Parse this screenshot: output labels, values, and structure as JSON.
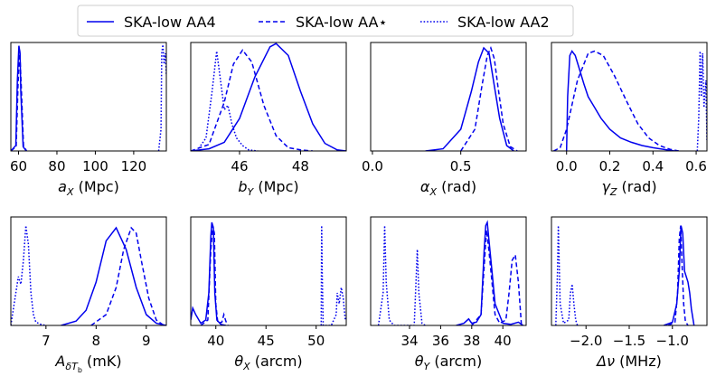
{
  "legend": {
    "items": [
      {
        "label": "SKA-low AA4",
        "dash": "solid"
      },
      {
        "label": "SKA-low AA⋆",
        "dash": "dashed"
      },
      {
        "label": "SKA-low AA2",
        "dash": "dotted"
      }
    ],
    "placement": "top-center"
  },
  "line_color": "#0000ee",
  "chart_data": [
    {
      "type": "line",
      "xlabel_main": "a",
      "xlabel_sub": "X",
      "xlabel_unit": " (Mpc)",
      "xlim": [
        56,
        137
      ],
      "xticks": [
        60,
        80,
        100,
        120
      ],
      "ylim": [
        0,
        1
      ],
      "series": [
        {
          "name": "SKA-low AA4",
          "dash": "solid",
          "x": [
            56,
            58.6,
            59.4,
            60.2,
            60.8,
            61.2,
            62.4,
            64
          ],
          "y": [
            0,
            0.05,
            0.65,
            0.97,
            0.9,
            0.55,
            0.04,
            0
          ]
        },
        {
          "name": "SKA-low AA⋆",
          "dash": "dashed",
          "x": [
            56,
            58.8,
            59.7,
            60.6,
            61.4,
            62.6,
            64.2
          ],
          "y": [
            0,
            0.04,
            0.6,
            0.93,
            0.6,
            0.05,
            0
          ]
        },
        {
          "name": "SKA-low AA2",
          "dash": "dotted",
          "x": [
            133,
            134.2,
            134.6,
            135.2,
            135.8,
            136.5,
            137
          ],
          "y": [
            0,
            0.2,
            0.9,
            0.98,
            0.8,
            0.9,
            0.7
          ]
        }
      ]
    },
    {
      "type": "line",
      "xlabel_main": "b",
      "xlabel_sub": "Y",
      "xlabel_unit": " (Mpc)",
      "xlim": [
        44.4,
        49.5
      ],
      "xticks": [
        46,
        48
      ],
      "ylim": [
        0,
        1
      ],
      "series": [
        {
          "name": "SKA-low AA4",
          "dash": "solid",
          "x": [
            44.4,
            45,
            45.5,
            46,
            46.5,
            47,
            47.2,
            47.6,
            48,
            48.4,
            48.8,
            49.2,
            49.5
          ],
          "y": [
            0,
            0.02,
            0.08,
            0.3,
            0.68,
            0.96,
            0.99,
            0.88,
            0.55,
            0.25,
            0.07,
            0.01,
            0
          ]
        },
        {
          "name": "SKA-low AA⋆",
          "dash": "dashed",
          "x": [
            44.4,
            45,
            45.5,
            45.8,
            46.1,
            46.4,
            46.8,
            47.2,
            47.6,
            48,
            48.4
          ],
          "y": [
            0,
            0.06,
            0.45,
            0.8,
            0.93,
            0.82,
            0.42,
            0.14,
            0.03,
            0.01,
            0
          ]
        },
        {
          "name": "SKA-low AA2",
          "dash": "dotted",
          "x": [
            44.6,
            44.9,
            45.1,
            45.25,
            45.4,
            45.5,
            45.62,
            45.75,
            45.9,
            46.1,
            46.3,
            46.6
          ],
          "y": [
            0,
            0.12,
            0.55,
            0.92,
            0.6,
            0.38,
            0.42,
            0.25,
            0.12,
            0.05,
            0.01,
            0
          ]
        }
      ]
    },
    {
      "type": "line",
      "xlabel_main": "α",
      "xlabel_sub": "X",
      "xlabel_unit": " (rad)",
      "xlim": [
        -0.01,
        0.87
      ],
      "xticks": [
        0.0,
        0.5
      ],
      "ylim": [
        0,
        1
      ],
      "series": [
        {
          "name": "SKA-low AA4",
          "dash": "solid",
          "x": [
            0.3,
            0.4,
            0.5,
            0.56,
            0.6,
            0.63,
            0.66,
            0.69,
            0.72,
            0.76,
            0.8
          ],
          "y": [
            0,
            0.02,
            0.2,
            0.55,
            0.82,
            0.95,
            0.9,
            0.6,
            0.3,
            0.05,
            0
          ]
        },
        {
          "name": "SKA-low AA⋆",
          "dash": "dashed",
          "x": [
            0.5,
            0.58,
            0.62,
            0.65,
            0.67,
            0.69,
            0.71,
            0.74,
            0.78,
            0.82
          ],
          "y": [
            0,
            0.2,
            0.6,
            0.88,
            0.95,
            0.85,
            0.6,
            0.25,
            0.04,
            0
          ]
        },
        {
          "name": "SKA-low AA2",
          "dash": "dotted",
          "x": [],
          "y": []
        }
      ]
    },
    {
      "type": "line",
      "xlabel_main": "γ",
      "xlabel_sub": "Z",
      "xlabel_unit": " (rad)",
      "xlim": [
        -0.07,
        0.65
      ],
      "xticks": [
        0.0,
        0.2,
        0.4,
        0.6
      ],
      "ylim": [
        0,
        1
      ],
      "series": [
        {
          "name": "SKA-low AA4",
          "dash": "solid",
          "x": [
            0,
            0.005,
            0.015,
            0.025,
            0.04,
            0.06,
            0.08,
            0.1,
            0.13,
            0.16,
            0.2,
            0.25,
            0.3,
            0.35,
            0.4,
            0.45,
            0.5
          ],
          "y": [
            0,
            0.5,
            0.88,
            0.92,
            0.88,
            0.75,
            0.62,
            0.5,
            0.4,
            0.3,
            0.2,
            0.12,
            0.08,
            0.05,
            0.03,
            0.015,
            0
          ]
        },
        {
          "name": "SKA-low AA⋆",
          "dash": "dashed",
          "x": [
            -0.06,
            -0.03,
            0,
            0.05,
            0.1,
            0.13,
            0.17,
            0.22,
            0.28,
            0.33,
            0.38,
            0.43,
            0.48,
            0.52
          ],
          "y": [
            0,
            0.03,
            0.2,
            0.65,
            0.9,
            0.92,
            0.88,
            0.7,
            0.45,
            0.25,
            0.12,
            0.05,
            0.015,
            0
          ]
        },
        {
          "name": "SKA-low AA2",
          "dash": "dotted",
          "x": [
            0.605,
            0.612,
            0.618,
            0.624,
            0.63,
            0.636,
            0.645,
            0.65
          ],
          "y": [
            0,
            0.3,
            0.92,
            0.5,
            0.9,
            0.4,
            0.65,
            0.1
          ]
        }
      ]
    },
    {
      "type": "line",
      "xlabel_main": "A",
      "xlabel_sub": "δT",
      "xlabel_subsub": "b",
      "xlabel_unit": " (mK)",
      "xlim": [
        6.3,
        9.4
      ],
      "xticks": [
        7,
        8,
        9
      ],
      "ylim": [
        0,
        1
      ],
      "series": [
        {
          "name": "SKA-low AA4",
          "dash": "solid",
          "x": [
            7.3,
            7.6,
            7.8,
            8,
            8.2,
            8.4,
            8.6,
            8.8,
            9,
            9.2,
            9.4
          ],
          "y": [
            0,
            0.04,
            0.14,
            0.4,
            0.78,
            0.9,
            0.7,
            0.35,
            0.1,
            0.02,
            0
          ]
        },
        {
          "name": "SKA-low AA⋆",
          "dash": "dashed",
          "x": [
            7.9,
            8.2,
            8.4,
            8.55,
            8.7,
            8.8,
            8.9,
            9.05,
            9.2,
            9.35
          ],
          "y": [
            0,
            0.1,
            0.35,
            0.7,
            0.9,
            0.85,
            0.6,
            0.25,
            0.05,
            0
          ]
        },
        {
          "name": "SKA-low AA2",
          "dash": "dotted",
          "x": [
            6.3,
            6.4,
            6.45,
            6.5,
            6.55,
            6.6,
            6.65,
            6.7,
            6.75,
            6.8,
            6.9,
            7
          ],
          "y": [
            0,
            0.3,
            0.45,
            0.38,
            0.6,
            0.92,
            0.75,
            0.3,
            0.1,
            0.03,
            0.01,
            0
          ]
        }
      ]
    },
    {
      "type": "line",
      "xlabel_main": "θ",
      "xlabel_sub": "X",
      "xlabel_unit": " (arcm)",
      "xlim": [
        37.5,
        53
      ],
      "xticks": [
        40,
        45,
        50
      ],
      "ylim": [
        0,
        1
      ],
      "series": [
        {
          "name": "SKA-low AA4",
          "dash": "solid",
          "x": [
            37.5,
            37.7,
            38,
            38.5,
            39,
            39.3,
            39.5,
            39.6,
            39.75,
            39.9,
            40.1,
            40.5,
            41
          ],
          "y": [
            0.05,
            0.16,
            0.1,
            0.02,
            0.05,
            0.3,
            0.82,
            0.95,
            0.9,
            0.3,
            0.05,
            0.01,
            0
          ]
        },
        {
          "name": "SKA-low AA⋆",
          "dash": "dashed",
          "x": [
            38.5,
            39.2,
            39.5,
            39.7,
            39.85,
            40,
            40.2,
            40.6,
            40.8,
            41,
            41.2
          ],
          "y": [
            0,
            0.05,
            0.7,
            0.92,
            0.85,
            0.2,
            0.02,
            0.03,
            0.1,
            0.04,
            0
          ]
        },
        {
          "name": "SKA-low AA2",
          "dash": "dotted",
          "x": [
            50.5,
            50.55,
            50.6,
            50.7,
            51,
            51.5,
            52,
            52.1,
            52.3,
            52.5,
            52.7,
            52.9
          ],
          "y": [
            0,
            0.92,
            0.5,
            0,
            0,
            0,
            0.1,
            0.3,
            0.2,
            0.35,
            0.25,
            0.05
          ]
        }
      ]
    },
    {
      "type": "line",
      "xlabel_main": "θ",
      "xlabel_sub": "Y",
      "xlabel_unit": " (arcm)",
      "xlim": [
        31.5,
        41.5
      ],
      "xticks": [
        34,
        36,
        38,
        40
      ],
      "ylim": [
        0,
        1
      ],
      "series": [
        {
          "name": "SKA-low AA4",
          "dash": "solid",
          "x": [
            37,
            37.5,
            37.8,
            38,
            38.3,
            38.6,
            38.8,
            38.9,
            39,
            39.1,
            39.3,
            39.5,
            40,
            40.5,
            41,
            41.3
          ],
          "y": [
            0,
            0.02,
            0.06,
            0.02,
            0.03,
            0.1,
            0.7,
            0.92,
            0.95,
            0.8,
            0.5,
            0.2,
            0.02,
            0.01,
            0.03,
            0
          ]
        },
        {
          "name": "SKA-low AA⋆",
          "dash": "dashed",
          "x": [
            38,
            38.6,
            38.8,
            38.95,
            39.1,
            39.3,
            39.5,
            39.8,
            40.2,
            40.4,
            40.6,
            40.8,
            41,
            41.2
          ],
          "y": [
            0,
            0.1,
            0.55,
            0.88,
            0.7,
            0.4,
            0.1,
            0.02,
            0.05,
            0.3,
            0.6,
            0.65,
            0.4,
            0
          ]
        },
        {
          "name": "SKA-low AA2",
          "dash": "dotted",
          "x": [
            32,
            32.3,
            32.4,
            32.5,
            32.7,
            33,
            34.3,
            34.5,
            34.6,
            34.8,
            35
          ],
          "y": [
            0,
            0.3,
            0.92,
            0.4,
            0.05,
            0,
            0,
            0.7,
            0.3,
            0.02,
            0
          ]
        }
      ]
    },
    {
      "type": "line",
      "xlabel_main": "Δν",
      "xlabel_sub": "",
      "xlabel_unit": " (MHz)",
      "xlim": [
        -2.4,
        -0.6
      ],
      "xticks": [
        -2.0,
        -1.5,
        -1.0
      ],
      "ylim": [
        0,
        1
      ],
      "series": [
        {
          "name": "SKA-low AA4",
          "dash": "solid",
          "x": [
            -1.1,
            -1.0,
            -0.95,
            -0.92,
            -0.9,
            -0.88,
            -0.86,
            -0.84,
            -0.82,
            -0.8,
            -0.78,
            -0.75
          ],
          "y": [
            0,
            0.03,
            0.2,
            0.5,
            0.92,
            0.85,
            0.5,
            0.45,
            0.4,
            0.3,
            0.15,
            0
          ]
        },
        {
          "name": "SKA-low AA⋆",
          "dash": "dashed",
          "x": [
            -1.05,
            -0.97,
            -0.94,
            -0.92,
            -0.905,
            -0.89,
            -0.87,
            -0.85,
            -0.82
          ],
          "y": [
            0,
            0.03,
            0.3,
            0.8,
            0.92,
            0.6,
            0.2,
            0.04,
            0
          ]
        },
        {
          "name": "SKA-low AA2",
          "dash": "dotted",
          "x": [
            -2.35,
            -2.33,
            -2.32,
            -2.3,
            -2.26,
            -2.2,
            -2.18,
            -2.16,
            -2.14,
            -2.12,
            -2.1
          ],
          "y": [
            0,
            0.5,
            0.92,
            0.2,
            0.02,
            0.05,
            0.3,
            0.38,
            0.2,
            0.05,
            0
          ]
        }
      ]
    }
  ]
}
